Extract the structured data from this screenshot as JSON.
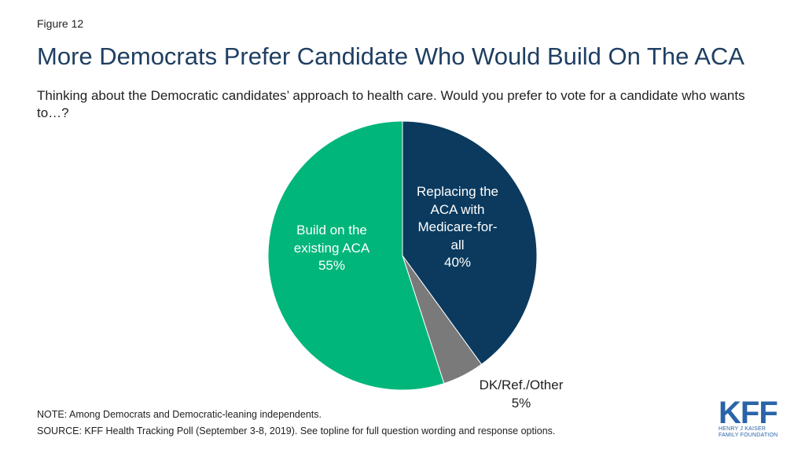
{
  "figure_label": "Figure 12",
  "title": "More Democrats Prefer Candidate Who Would Build On The ACA",
  "subtitle": "Thinking about the Democratic candidates’ approach to health care. Would you prefer to vote for a candidate who wants to…?",
  "chart_data": {
    "type": "pie",
    "slices": [
      {
        "label_lines": [
          "Replacing the",
          "ACA with",
          "Medicare-for-",
          "all",
          "40%"
        ],
        "name": "Replacing the ACA with Medicare-for-all",
        "value": 40,
        "color": "#0b3a5e",
        "label_color": "#ffffff"
      },
      {
        "label_lines": [
          "DK/Ref./Other",
          "5%"
        ],
        "name": "DK/Ref./Other",
        "value": 5,
        "color": "#7a7a7a",
        "label_color": "#1f1f1f"
      },
      {
        "label_lines": [
          "Build on the",
          "existing ACA",
          "55%"
        ],
        "name": "Build on the existing ACA",
        "value": 55,
        "color": "#00b67a",
        "label_color": "#ffffff"
      }
    ],
    "start_angle_deg": 0,
    "direction": "clockwise"
  },
  "note": "NOTE: Among Democrats and Democratic-leaning independents.",
  "source": "SOURCE: KFF Health Tracking Poll (September 3-8, 2019). See topline for full question wording and response options.",
  "logo": {
    "mark": "KFF",
    "line1": "HENRY J KAISER",
    "line2": "FAMILY FOUNDATION",
    "color": "#2a64a8"
  }
}
